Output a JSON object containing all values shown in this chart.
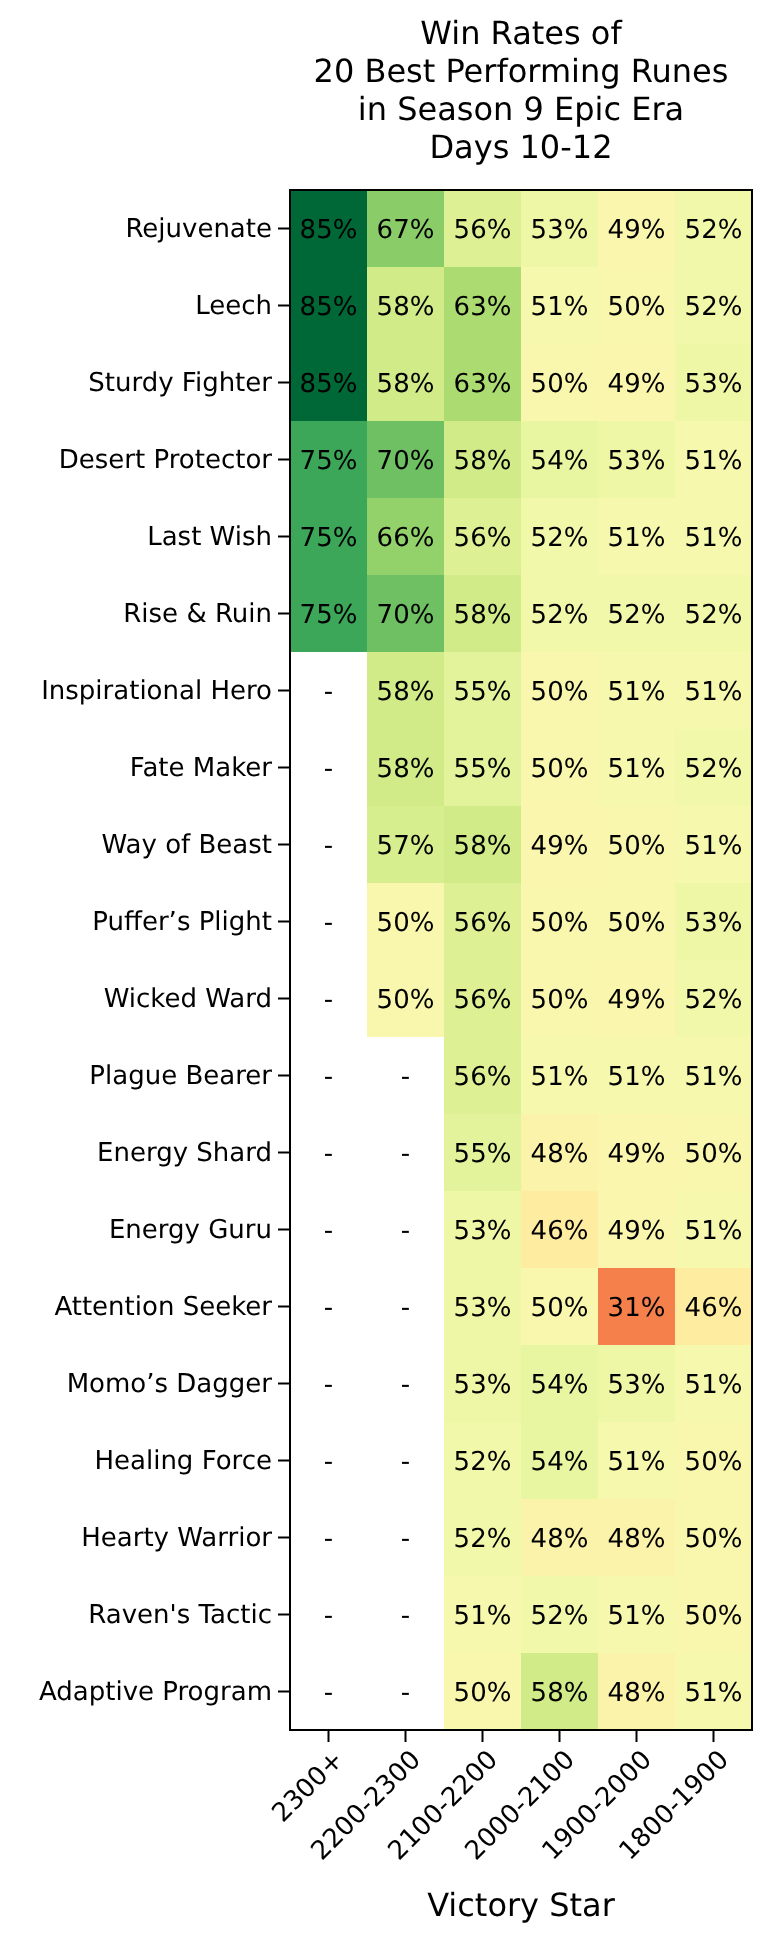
{
  "chart_data": {
    "type": "heatmap",
    "title": "Win Rates of\n20 Best Performing Runes\nin Season 9 Epic Era\nDays 10-12",
    "xlabel": "Victory Star",
    "categories": [
      "2300+",
      "2200-2300",
      "2100-2200",
      "2000-2100",
      "1900-2000",
      "1800-1900"
    ],
    "y_categories": [
      "Rejuvenate",
      "Leech",
      "Sturdy Fighter",
      "Desert Protector",
      "Last Wish",
      "Rise & Ruin",
      "Inspirational Hero",
      "Fate Maker",
      "Way of Beast",
      "Puffer’s Plight",
      "Wicked Ward",
      "Plague Bearer",
      "Energy Shard",
      "Energy Guru",
      "Attention Seeker",
      "Momo’s Dagger",
      "Healing Force",
      "Hearty Warrior",
      "Raven's Tactic",
      "Adaptive Program"
    ],
    "cells": [
      [
        85,
        67,
        56,
        53,
        49,
        52
      ],
      [
        85,
        58,
        63,
        51,
        50,
        52
      ],
      [
        85,
        58,
        63,
        50,
        49,
        53
      ],
      [
        75,
        70,
        58,
        54,
        53,
        51
      ],
      [
        75,
        66,
        56,
        52,
        51,
        51
      ],
      [
        75,
        70,
        58,
        52,
        52,
        52
      ],
      [
        null,
        58,
        55,
        50,
        51,
        51
      ],
      [
        null,
        58,
        55,
        50,
        51,
        52
      ],
      [
        null,
        57,
        58,
        49,
        50,
        51
      ],
      [
        null,
        50,
        56,
        50,
        50,
        53
      ],
      [
        null,
        50,
        56,
        50,
        49,
        52
      ],
      [
        null,
        null,
        56,
        51,
        51,
        51
      ],
      [
        null,
        null,
        55,
        48,
        49,
        50
      ],
      [
        null,
        null,
        53,
        46,
        49,
        51
      ],
      [
        null,
        null,
        53,
        50,
        31,
        46
      ],
      [
        null,
        null,
        53,
        54,
        53,
        51
      ],
      [
        null,
        null,
        52,
        54,
        51,
        50
      ],
      [
        null,
        null,
        52,
        48,
        48,
        50
      ],
      [
        null,
        null,
        51,
        52,
        51,
        50
      ],
      [
        null,
        null,
        50,
        58,
        48,
        51
      ]
    ],
    "cell_labels": [
      [
        "85%",
        "67%",
        "56%",
        "53%",
        "49%",
        "52%"
      ],
      [
        "85%",
        "58%",
        "63%",
        "51%",
        "50%",
        "52%"
      ],
      [
        "85%",
        "58%",
        "63%",
        "50%",
        "49%",
        "53%"
      ],
      [
        "75%",
        "70%",
        "58%",
        "54%",
        "53%",
        "51%"
      ],
      [
        "75%",
        "66%",
        "56%",
        "52%",
        "51%",
        "51%"
      ],
      [
        "75%",
        "70%",
        "58%",
        "52%",
        "52%",
        "52%"
      ],
      [
        "-",
        "58%",
        "55%",
        "50%",
        "51%",
        "51%"
      ],
      [
        "-",
        "58%",
        "55%",
        "50%",
        "51%",
        "52%"
      ],
      [
        "-",
        "57%",
        "58%",
        "49%",
        "50%",
        "51%"
      ],
      [
        "-",
        "50%",
        "56%",
        "50%",
        "50%",
        "53%"
      ],
      [
        "-",
        "50%",
        "56%",
        "50%",
        "49%",
        "52%"
      ],
      [
        "-",
        "-",
        "56%",
        "51%",
        "51%",
        "51%"
      ],
      [
        "-",
        "-",
        "55%",
        "48%",
        "49%",
        "50%"
      ],
      [
        "-",
        "-",
        "53%",
        "46%",
        "49%",
        "51%"
      ],
      [
        "-",
        "-",
        "53%",
        "50%",
        "31%",
        "46%"
      ],
      [
        "-",
        "-",
        "53%",
        "54%",
        "53%",
        "51%"
      ],
      [
        "-",
        "-",
        "52%",
        "54%",
        "51%",
        "50%"
      ],
      [
        "-",
        "-",
        "52%",
        "48%",
        "48%",
        "50%"
      ],
      [
        "-",
        "-",
        "51%",
        "52%",
        "51%",
        "50%"
      ],
      [
        "-",
        "-",
        "50%",
        "58%",
        "48%",
        "51%"
      ]
    ]
  }
}
